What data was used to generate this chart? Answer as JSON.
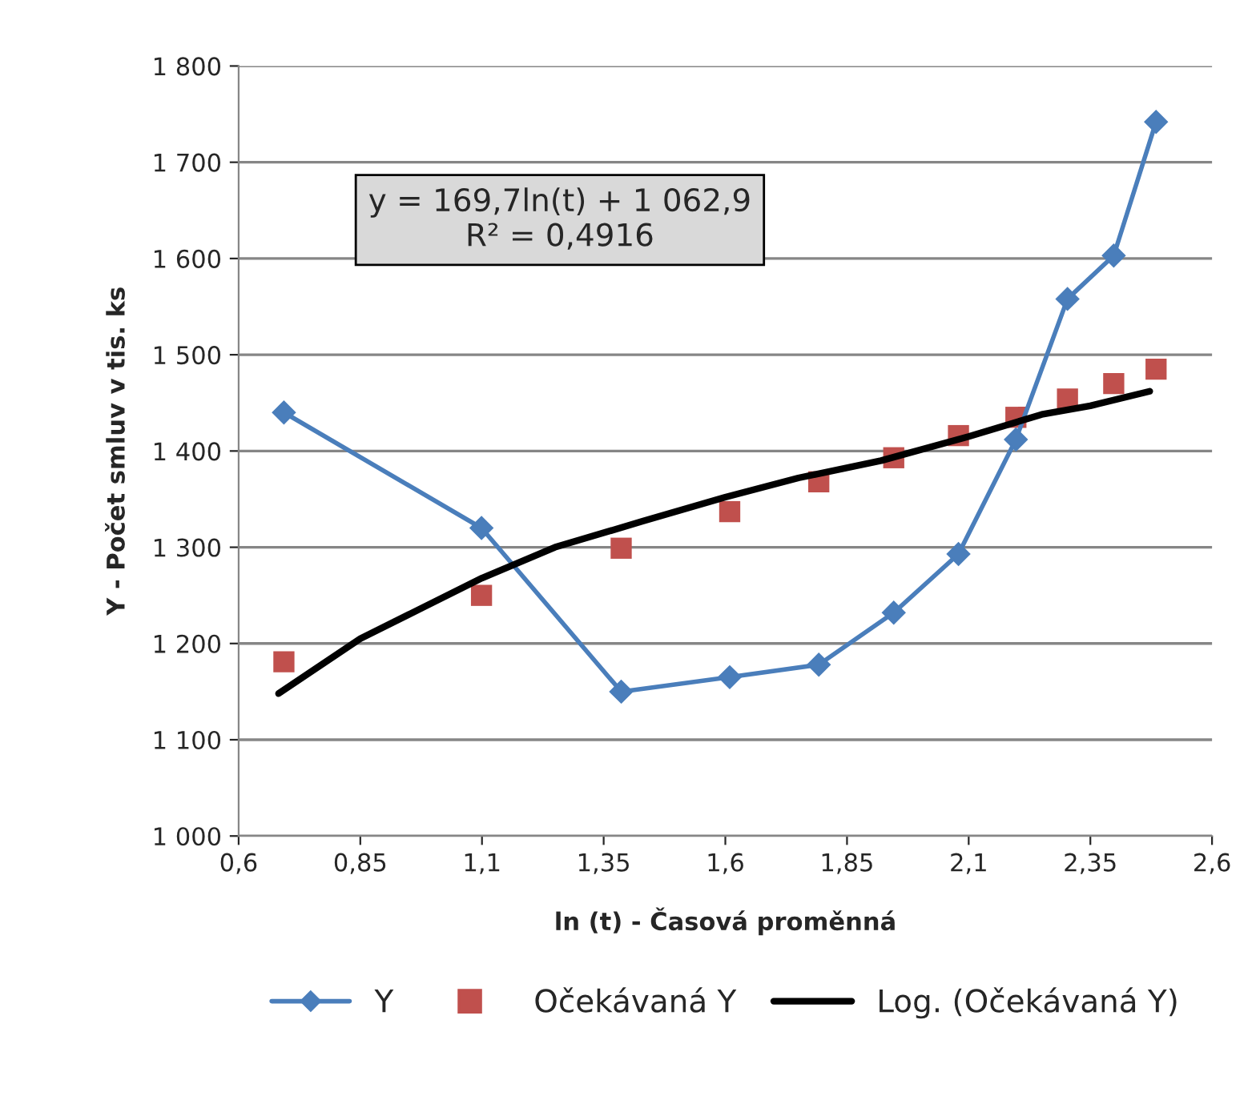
{
  "chart_data": {
    "type": "line",
    "xlabel": "ln (t) - Časová proměnná",
    "ylabel": "Y - Počet smluv v tis. ks",
    "annotations": [
      "y = 169,7ln(t) + 1 062,9\nR² = 0,4916"
    ],
    "xlim": [
      0.6,
      2.6
    ],
    "xticks": [
      {
        "value": 0.6,
        "label": "0,6"
      },
      {
        "value": 0.85,
        "label": "0,85"
      },
      {
        "value": 1.1,
        "label": "1,1"
      },
      {
        "value": 1.35,
        "label": "1,35"
      },
      {
        "value": 1.6,
        "label": "1,6"
      },
      {
        "value": 1.85,
        "label": "1,85"
      },
      {
        "value": 2.1,
        "label": "2,1"
      },
      {
        "value": 2.35,
        "label": "2,35"
      },
      {
        "value": 2.6,
        "label": "2,6"
      }
    ],
    "ylim": [
      1000,
      1800
    ],
    "yticks": [
      {
        "value": 1000,
        "label": "1 000"
      },
      {
        "value": 1100,
        "label": "1 100"
      },
      {
        "value": 1200,
        "label": "1 200"
      },
      {
        "value": 1300,
        "label": "1 300"
      },
      {
        "value": 1400,
        "label": "1 400"
      },
      {
        "value": 1500,
        "label": "1 500"
      },
      {
        "value": 1600,
        "label": "1 600"
      },
      {
        "value": 1700,
        "label": "1 700"
      },
      {
        "value": 1800,
        "label": "1 800"
      }
    ],
    "grid": "y",
    "legend": "bottom",
    "series": [
      {
        "name": "Y",
        "marker": "diamond",
        "color": "#4a7ebb",
        "x": [
          0.693,
          1.099,
          1.386,
          1.609,
          1.792,
          1.946,
          2.079,
          2.197,
          2.303,
          2.398,
          2.485
        ],
        "values": [
          1440,
          1320,
          1150,
          1165,
          1178,
          1232,
          1293,
          1412,
          1558,
          1603,
          1742
        ]
      },
      {
        "name": "Očekávaná Y",
        "type": "scatter",
        "marker": "square",
        "color": "#c0504d",
        "x": [
          0.693,
          1.099,
          1.386,
          1.609,
          1.792,
          1.946,
          2.079,
          2.197,
          2.303,
          2.398,
          2.485
        ],
        "values": [
          1181,
          1250,
          1299,
          1337,
          1368,
          1393,
          1416,
          1435,
          1454,
          1470,
          1485
        ]
      },
      {
        "name": "Log. (Očekávaná Y)",
        "marker": "none",
        "line_style": "solid",
        "color": "#000000",
        "x": [
          0.682,
          0.85,
          1.1,
          1.25,
          1.43,
          1.6,
          1.75,
          1.92,
          2.1,
          2.25,
          2.35,
          2.472
        ],
        "values": [
          1148,
          1205,
          1268,
          1300,
          1327,
          1352,
          1372,
          1390,
          1415,
          1438,
          1447,
          1462
        ]
      }
    ]
  }
}
